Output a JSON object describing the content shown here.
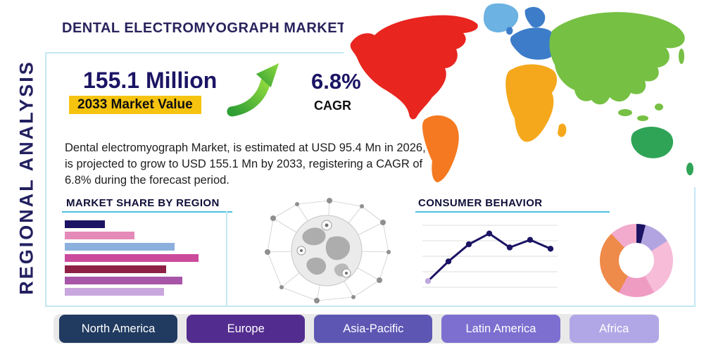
{
  "title": "DENTAL ELECTROMYOGRAPH MARKET",
  "vertical_label": "REGIONAL ANALYSIS",
  "colors": {
    "accent_navy": "#1b1464",
    "highlight_yellow": "#f6c410",
    "underline_teal": "#4ec1de",
    "panel_border": "#c3e8f3",
    "strip_gray": "#e9e9e9"
  },
  "stats": {
    "market_value": "155.1 Million",
    "market_value_label": "2033 Market Value",
    "cagr_value": "6.8%",
    "cagr_label": "CAGR"
  },
  "description": "Dental electromyograph Market, is estimated at USD 95.4 Mn in 2026, is projected to grow to USD 155.1 Mn by 2033, registering a CAGR of 6.8% during the forecast period.",
  "sections": {
    "market_share_title": "MARKET SHARE BY REGION",
    "consumer_behavior_title": "CONSUMER BEHAVIOR"
  },
  "buttons": [
    {
      "label": "North America",
      "color": "#203a60"
    },
    {
      "label": "Europe",
      "color": "#532c8f"
    },
    {
      "label": "Asia-Pacific",
      "color": "#5d57b3"
    },
    {
      "label": "Latin America",
      "color": "#7c6fd0"
    },
    {
      "label": "Africa",
      "color": "#b2a7e6"
    }
  ],
  "map": {
    "regions": [
      {
        "name": "North America",
        "color": "#e8251f"
      },
      {
        "name": "Greenland",
        "color": "#6cb2e2"
      },
      {
        "name": "South America",
        "color": "#f47920"
      },
      {
        "name": "Europe",
        "color": "#3d7cc9"
      },
      {
        "name": "Africa",
        "color": "#f5a81c"
      },
      {
        "name": "Asia",
        "color": "#76c043"
      },
      {
        "name": "Australia",
        "color": "#2fa457"
      }
    ]
  },
  "chart_data": [
    {
      "type": "bar",
      "title": "Market Share by Region",
      "orientation": "horizontal",
      "categories": [
        "",
        "",
        "",
        "",
        "",
        "",
        ""
      ],
      "values": [
        30,
        52,
        82,
        100,
        76,
        88,
        74
      ],
      "value_unit": "relative share (max = 100)",
      "colors": [
        "#1b1464",
        "#e48ab8",
        "#8cb0de",
        "#cb4a9c",
        "#8e2045",
        "#a855a8",
        "#c9a6dd"
      ],
      "xlabel": "",
      "ylabel": ""
    },
    {
      "type": "line",
      "title": "Consumer Behavior",
      "x": [
        0,
        1,
        2,
        3,
        4,
        5,
        6
      ],
      "values": [
        12,
        43,
        70,
        87,
        65,
        77,
        63
      ],
      "ylim": [
        0,
        100
      ],
      "grid": "horizontal",
      "color": "#1b1464",
      "start_marker_color": "#bfa8e0"
    },
    {
      "type": "pie",
      "title": "Regional distribution donut",
      "values": [
        4,
        12,
        26,
        16,
        30,
        12
      ],
      "colors": [
        "#1b1464",
        "#b2a4e0",
        "#f6bcd8",
        "#ef9cc2",
        "#ee8a4a",
        "#f2aacd"
      ],
      "donut": true
    }
  ]
}
